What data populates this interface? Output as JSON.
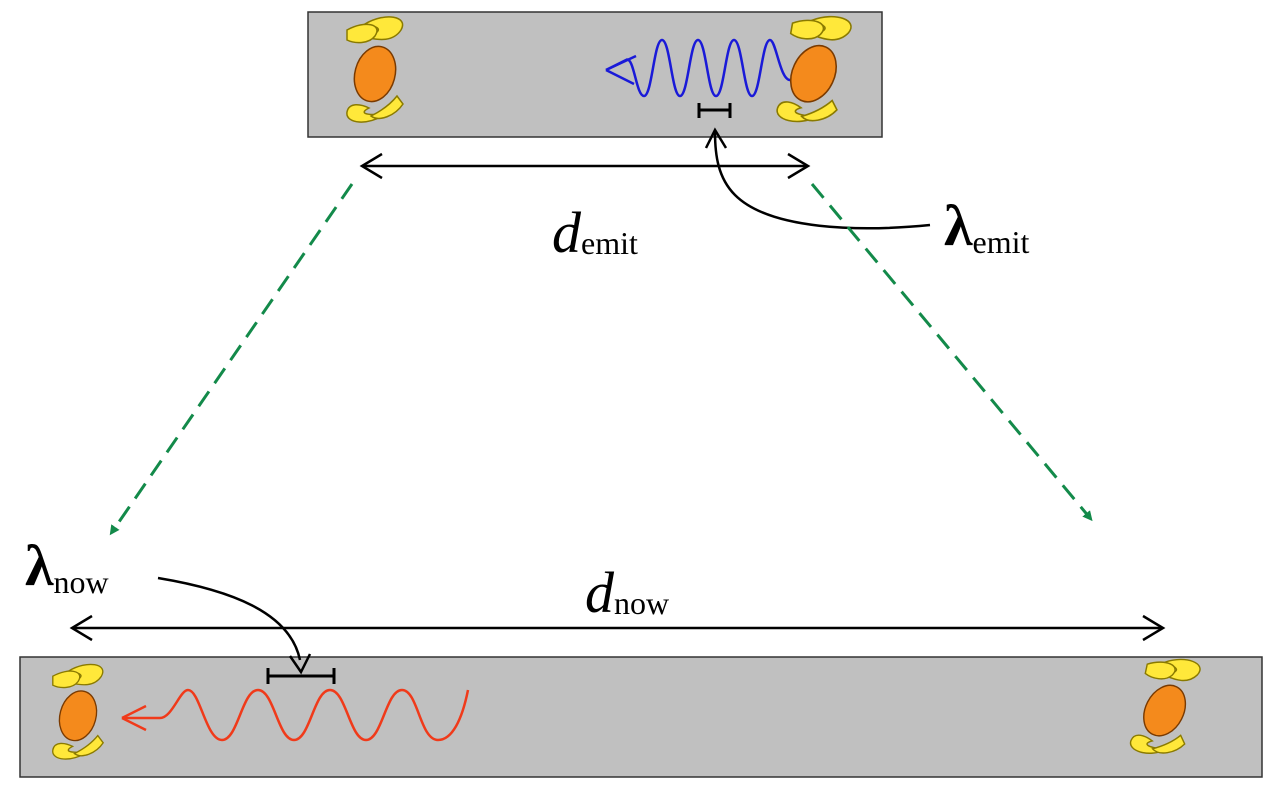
{
  "labels": {
    "d_emit": {
      "symbol": "d",
      "subscript": "emit"
    },
    "lambda_emit": {
      "symbol": "λ",
      "subscript": "emit"
    },
    "d_now": {
      "symbol": "d",
      "subscript": "now"
    },
    "lambda_now": {
      "symbol": "λ",
      "subscript": "now"
    }
  },
  "colors": {
    "panel_fill": "#c0c0c0",
    "panel_stroke": "#333333",
    "wave_emit": "#1a1ad8",
    "wave_now": "#f03a1a",
    "expansion_arrow": "#138a4a",
    "galaxy_core": "#f48a1c",
    "galaxy_arm": "#ffe83a",
    "arrow": "#000000"
  },
  "icons": {
    "galaxy": "spiral-galaxy-icon"
  }
}
